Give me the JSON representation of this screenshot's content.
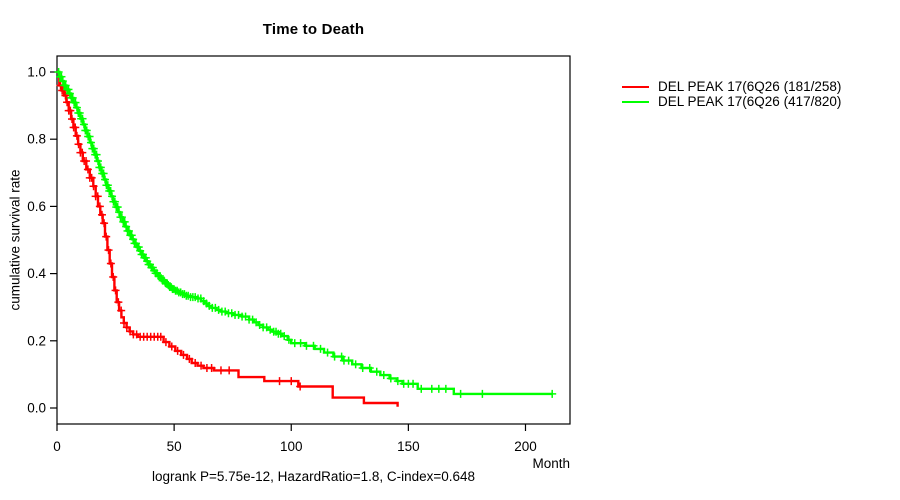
{
  "chart_data": {
    "type": "line",
    "subtype": "kaplan-meier-step-survival",
    "title": "Time to Death",
    "xlabel": "Month",
    "ylabel": "cumulative survival rate",
    "footnote": "logrank P=5.75e-12, HazardRatio=1.8, C-index=0.648",
    "xlim": [
      0,
      219
    ],
    "ylim": [
      0.0,
      1.0
    ],
    "x_ticks": [
      {
        "label": "0",
        "value": 0
      },
      {
        "label": "50",
        "value": 50
      },
      {
        "label": "100",
        "value": 100
      },
      {
        "label": "150",
        "value": 150
      },
      {
        "label": "200",
        "value": 200
      }
    ],
    "y_ticks": [
      {
        "label": "0.0",
        "value": 0.0
      },
      {
        "label": "0.2",
        "value": 0.2
      },
      {
        "label": "0.4",
        "value": 0.4
      },
      {
        "label": "0.6",
        "value": 0.6
      },
      {
        "label": "0.8",
        "value": 0.8
      },
      {
        "label": "1.0",
        "value": 1.0
      }
    ],
    "grid": false,
    "legend_position": "outside-top-right",
    "frame_color": "#000000",
    "series": [
      {
        "name": "DEL PEAK 17(6Q26 (181/258)",
        "color": "#ff0000",
        "events": 181,
        "total": 258,
        "points": [
          [
            0,
            1.0
          ],
          [
            1,
            0.96
          ],
          [
            2,
            0.945
          ],
          [
            3,
            0.93
          ],
          [
            4,
            0.91
          ],
          [
            5,
            0.885
          ],
          [
            6,
            0.86
          ],
          [
            7,
            0.835
          ],
          [
            8,
            0.81
          ],
          [
            9,
            0.785
          ],
          [
            10,
            0.76
          ],
          [
            11,
            0.735
          ],
          [
            12.5,
            0.71
          ],
          [
            14,
            0.685
          ],
          [
            15.5,
            0.66
          ],
          [
            16.5,
            0.63
          ],
          [
            17.5,
            0.6
          ],
          [
            18.5,
            0.575
          ],
          [
            19.5,
            0.55
          ],
          [
            20.5,
            0.51
          ],
          [
            21.5,
            0.47
          ],
          [
            22.5,
            0.43
          ],
          [
            23.5,
            0.39
          ],
          [
            24.5,
            0.35
          ],
          [
            25.5,
            0.315
          ],
          [
            26.5,
            0.29
          ],
          [
            27.5,
            0.27
          ],
          [
            28.5,
            0.253
          ],
          [
            29.7,
            0.24
          ],
          [
            31,
            0.228
          ],
          [
            32.5,
            0.219
          ],
          [
            34.5,
            0.212
          ],
          [
            45.5,
            0.196
          ],
          [
            48,
            0.183
          ],
          [
            50.5,
            0.17
          ],
          [
            53,
            0.158
          ],
          [
            55.5,
            0.146
          ],
          [
            57.5,
            0.134
          ],
          [
            60,
            0.126
          ],
          [
            62.5,
            0.119
          ],
          [
            67,
            0.112
          ],
          [
            77.5,
            0.092
          ],
          [
            88.5,
            0.08
          ],
          [
            103,
            0.064
          ],
          [
            117.7,
            0.031
          ],
          [
            131,
            0.015
          ],
          [
            145.4,
            0.004
          ]
        ],
        "censor_times": [
          1.5,
          2.2,
          2.9,
          3.6,
          4.3,
          5,
          5.7,
          6.4,
          7.1,
          7.8,
          8.5,
          9.2,
          10,
          10.8,
          11.6,
          12.4,
          13.2,
          14,
          14.8,
          15.6,
          16.5,
          17.4,
          18.3,
          19.2,
          20.1,
          21,
          22,
          23,
          24,
          25,
          26.2,
          27.4,
          28.6,
          29.8,
          31.2,
          32.6,
          34,
          35.5,
          37,
          38.5,
          40,
          41.5,
          43,
          44.3,
          46.5,
          49,
          51.5,
          54,
          56.5,
          59,
          61.5,
          64,
          66,
          70,
          73.5,
          95,
          100,
          103.8
        ]
      },
      {
        "name": "DEL PEAK 17(6Q26 (417/820)",
        "color": "#00ff00",
        "events": 417,
        "total": 820,
        "points": [
          [
            0,
            1.0
          ],
          [
            1,
            0.986
          ],
          [
            2,
            0.973
          ],
          [
            3,
            0.96
          ],
          [
            4,
            0.948
          ],
          [
            5,
            0.936
          ],
          [
            6,
            0.923
          ],
          [
            7,
            0.909
          ],
          [
            8,
            0.894
          ],
          [
            9,
            0.878
          ],
          [
            10,
            0.861
          ],
          [
            11,
            0.844
          ],
          [
            12,
            0.826
          ],
          [
            13,
            0.808
          ],
          [
            14,
            0.79
          ],
          [
            15,
            0.772
          ],
          [
            16,
            0.754
          ],
          [
            17,
            0.735
          ],
          [
            18,
            0.716
          ],
          [
            19,
            0.698
          ],
          [
            20,
            0.68
          ],
          [
            21,
            0.663
          ],
          [
            22,
            0.646
          ],
          [
            23,
            0.63
          ],
          [
            24,
            0.614
          ],
          [
            25,
            0.598
          ],
          [
            26,
            0.583
          ],
          [
            27,
            0.568
          ],
          [
            28,
            0.554
          ],
          [
            29,
            0.54
          ],
          [
            30,
            0.527
          ],
          [
            31,
            0.514
          ],
          [
            32,
            0.502
          ],
          [
            33,
            0.49
          ],
          [
            34,
            0.479
          ],
          [
            35,
            0.468
          ],
          [
            36,
            0.457
          ],
          [
            37,
            0.447
          ],
          [
            38,
            0.437
          ],
          [
            39,
            0.427
          ],
          [
            40,
            0.418
          ],
          [
            41,
            0.409
          ],
          [
            42,
            0.401
          ],
          [
            43,
            0.393
          ],
          [
            44,
            0.386
          ],
          [
            45,
            0.379
          ],
          [
            46,
            0.372
          ],
          [
            47,
            0.366
          ],
          [
            48,
            0.36
          ],
          [
            49,
            0.354
          ],
          [
            50,
            0.349
          ],
          [
            51.5,
            0.344
          ],
          [
            53,
            0.339
          ],
          [
            55,
            0.334
          ],
          [
            57,
            0.33
          ],
          [
            59.5,
            0.326
          ],
          [
            61.5,
            0.318
          ],
          [
            63,
            0.311
          ],
          [
            64.5,
            0.304
          ],
          [
            66,
            0.298
          ],
          [
            68,
            0.292
          ],
          [
            70,
            0.287
          ],
          [
            72,
            0.282
          ],
          [
            75,
            0.277
          ],
          [
            79,
            0.272
          ],
          [
            82,
            0.263
          ],
          [
            84,
            0.255
          ],
          [
            86,
            0.247
          ],
          [
            88,
            0.24
          ],
          [
            90,
            0.233
          ],
          [
            92,
            0.227
          ],
          [
            94,
            0.221
          ],
          [
            96,
            0.214
          ],
          [
            98.5,
            0.203
          ],
          [
            100,
            0.193
          ],
          [
            106,
            0.185
          ],
          [
            110,
            0.176
          ],
          [
            114,
            0.165
          ],
          [
            118,
            0.153
          ],
          [
            122,
            0.141
          ],
          [
            126,
            0.13
          ],
          [
            130,
            0.119
          ],
          [
            134,
            0.108
          ],
          [
            138,
            0.098
          ],
          [
            142,
            0.088
          ],
          [
            145,
            0.08
          ],
          [
            147.5,
            0.072
          ],
          [
            154,
            0.057
          ],
          [
            169.4,
            0.042
          ],
          [
            211.5,
            0.042
          ]
        ],
        "censor_times": [
          0.7,
          1.3,
          1.9,
          2.5,
          3.1,
          3.7,
          4.3,
          4.9,
          5.5,
          6.1,
          6.7,
          7.3,
          7.9,
          8.5,
          9.1,
          9.7,
          10.3,
          10.9,
          11.5,
          12.1,
          12.7,
          13.3,
          13.9,
          14.5,
          15.1,
          15.7,
          16.3,
          16.9,
          17.5,
          18.1,
          18.7,
          19.3,
          19.9,
          20.5,
          21.1,
          21.7,
          22.3,
          22.9,
          23.5,
          24.1,
          24.7,
          25.3,
          25.9,
          26.5,
          27.1,
          27.7,
          28.3,
          28.9,
          29.5,
          30.1,
          30.7,
          31.3,
          31.9,
          32.5,
          33.1,
          33.7,
          34.3,
          34.9,
          35.5,
          36.1,
          36.7,
          37.3,
          37.9,
          38.5,
          39.1,
          39.7,
          40.3,
          40.9,
          41.5,
          42.1,
          42.7,
          43.3,
          43.9,
          44.5,
          45.1,
          45.7,
          46.3,
          46.9,
          47.5,
          48.1,
          48.7,
          49.3,
          49.9,
          50.6,
          51.3,
          52,
          52.8,
          53.6,
          54.4,
          55.2,
          56,
          57,
          58,
          59,
          60.2,
          61.4,
          62.6,
          63.8,
          65,
          66.3,
          67.6,
          69,
          70.4,
          71.8,
          73.2,
          74.6,
          76,
          77.5,
          79,
          80.5,
          82,
          83.5,
          85,
          86.5,
          88,
          89.5,
          91,
          92.5,
          93.5,
          94.5,
          95.5,
          97,
          99,
          101.5,
          104,
          106.5,
          109.5,
          112.5,
          115.5,
          118.5,
          121.5,
          122.5,
          124.5,
          127.5,
          130.5,
          133.5,
          136.5,
          139.5,
          142.5,
          145.5,
          148,
          150,
          152,
          155.5,
          160,
          163,
          166,
          172.3,
          181.6,
          211.4
        ]
      }
    ]
  }
}
